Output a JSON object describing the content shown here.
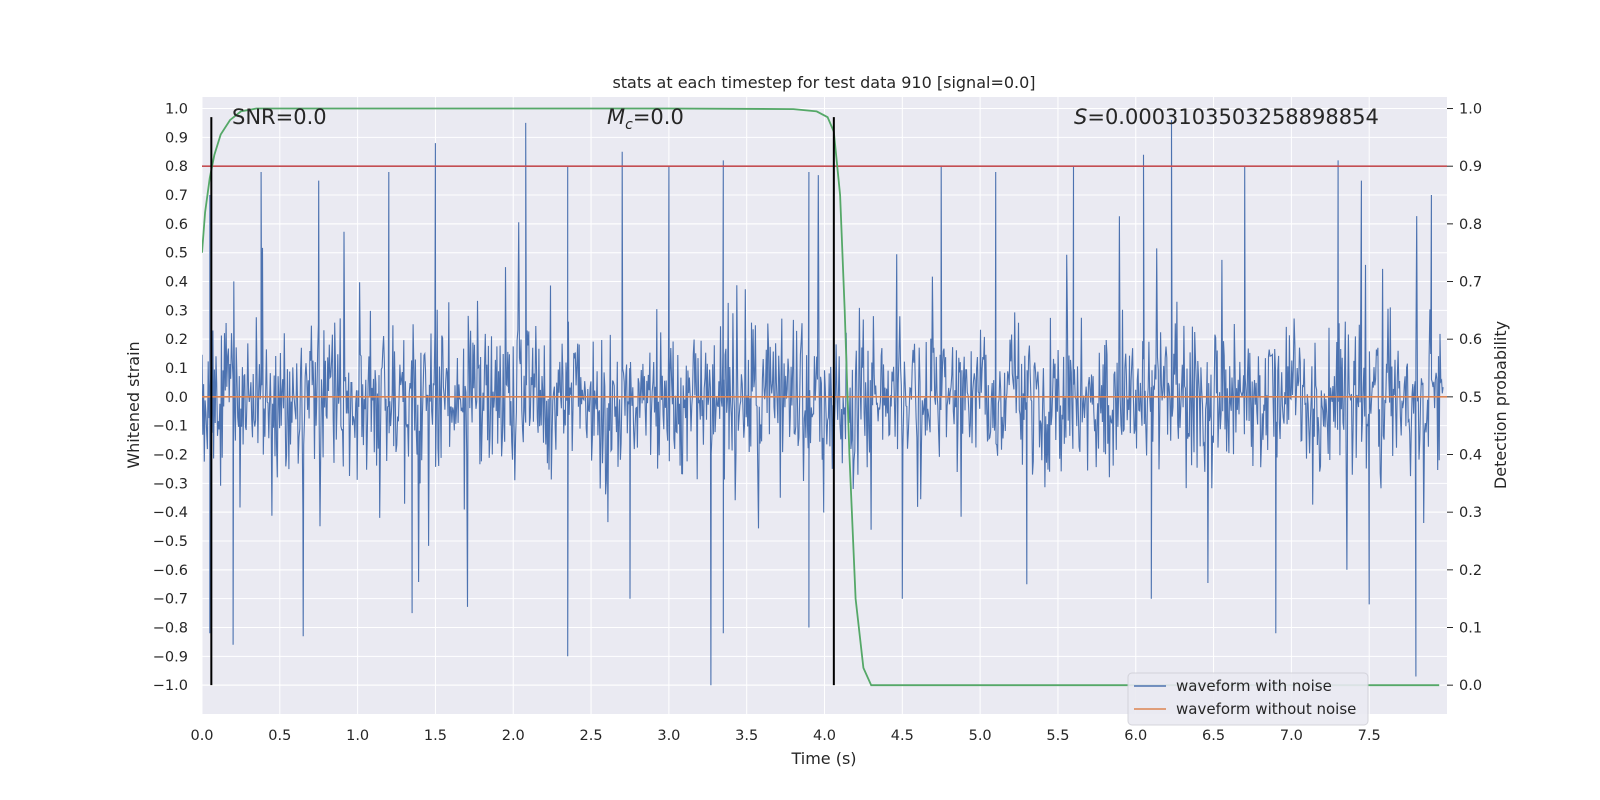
{
  "chart_data": {
    "type": "line",
    "title": "stats at each timestep for test data 910 [signal=0.0]",
    "xlabel": "Time (s)",
    "ylabel": "Whitened strain",
    "y2label": "Detection probability",
    "xlim": [
      0.0,
      8.0
    ],
    "ylim": [
      -1.1,
      1.04
    ],
    "y2lim": [
      -0.05,
      1.02
    ],
    "xticks": [
      "0.0",
      "0.5",
      "1.0",
      "1.5",
      "2.0",
      "2.5",
      "3.0",
      "3.5",
      "4.0",
      "4.5",
      "5.0",
      "5.5",
      "6.0",
      "6.5",
      "7.0",
      "7.5"
    ],
    "yticks": [
      "1.0",
      "0.9",
      "0.8",
      "0.7",
      "0.6",
      "0.5",
      "0.4",
      "0.3",
      "0.2",
      "0.1",
      "0.0",
      "-0.1",
      "-0.2",
      "-0.3",
      "-0.4",
      "-0.5",
      "-0.6",
      "-0.7",
      "-0.8",
      "-0.9",
      "-1.0"
    ],
    "y2ticks": [
      "1.0",
      "0.9",
      "0.8",
      "0.7",
      "0.6",
      "0.5",
      "0.4",
      "0.3",
      "0.2",
      "0.1",
      "0.0"
    ],
    "grid": true,
    "legend_placement": "lower-right",
    "annotations": {
      "snr": "SNR=0.0",
      "mc": "M_c=0.0",
      "s": "S=0.0003103503258898854"
    },
    "series": [
      {
        "name": "waveform with noise",
        "axis": "left",
        "color": "#4c72b0",
        "description_hint": "dense noise, mostly within ±0.4 with peaks up to ~0.95 and troughs down to ~-1.0",
        "peaks": [
          [
            0.05,
            0.7
          ],
          [
            0.38,
            0.78
          ],
          [
            0.75,
            0.75
          ],
          [
            1.2,
            0.78
          ],
          [
            1.5,
            0.88
          ],
          [
            2.08,
            0.95
          ],
          [
            2.35,
            0.8
          ],
          [
            2.7,
            0.85
          ],
          [
            3.0,
            0.8
          ],
          [
            3.35,
            0.82
          ],
          [
            3.9,
            0.78
          ],
          [
            4.75,
            0.8
          ],
          [
            5.1,
            0.78
          ],
          [
            5.6,
            0.8
          ],
          [
            6.05,
            0.84
          ],
          [
            6.23,
            0.96
          ],
          [
            6.7,
            0.8
          ],
          [
            7.3,
            0.82
          ],
          [
            7.45,
            0.75
          ],
          [
            7.9,
            0.7
          ]
        ],
        "troughs": [
          [
            0.05,
            -0.82
          ],
          [
            0.2,
            -0.86
          ],
          [
            0.65,
            -0.83
          ],
          [
            1.35,
            -0.75
          ],
          [
            2.35,
            -0.9
          ],
          [
            2.75,
            -0.7
          ],
          [
            3.27,
            -1.0
          ],
          [
            3.35,
            -0.82
          ],
          [
            3.9,
            -0.8
          ],
          [
            4.5,
            -0.7
          ],
          [
            5.3,
            -0.65
          ],
          [
            6.1,
            -0.7
          ],
          [
            6.9,
            -0.82
          ],
          [
            7.5,
            -0.72
          ],
          [
            7.8,
            -0.97
          ]
        ]
      },
      {
        "name": "waveform without noise",
        "axis": "left",
        "color": "#dd8452",
        "x": [
          0.0,
          8.0
        ],
        "y": [
          0.0,
          0.0
        ]
      },
      {
        "name": "",
        "axis": "right",
        "color": "#55a868",
        "x": [
          0.0,
          0.02,
          0.05,
          0.08,
          0.12,
          0.18,
          0.25,
          0.35,
          0.5,
          1.0,
          2.0,
          3.0,
          3.8,
          3.95,
          4.02,
          4.06,
          4.1,
          4.13,
          4.16,
          4.2,
          4.25,
          4.3,
          4.4,
          5.0,
          6.0,
          7.0,
          7.95
        ],
        "y": [
          0.75,
          0.82,
          0.88,
          0.92,
          0.955,
          0.98,
          0.995,
          1.0,
          1.0,
          1.0,
          1.0,
          1.0,
          0.999,
          0.995,
          0.985,
          0.96,
          0.85,
          0.65,
          0.4,
          0.15,
          0.03,
          0.0,
          0.0,
          0.0,
          0.0,
          0.0,
          0.0
        ]
      }
    ],
    "threshold_line": {
      "axis": "right",
      "color": "#c44e52",
      "y": 0.9
    },
    "vertical_lines": {
      "color": "#000000",
      "x": [
        0.06,
        4.06
      ],
      "y_range": [
        -1.0,
        0.97
      ]
    }
  }
}
